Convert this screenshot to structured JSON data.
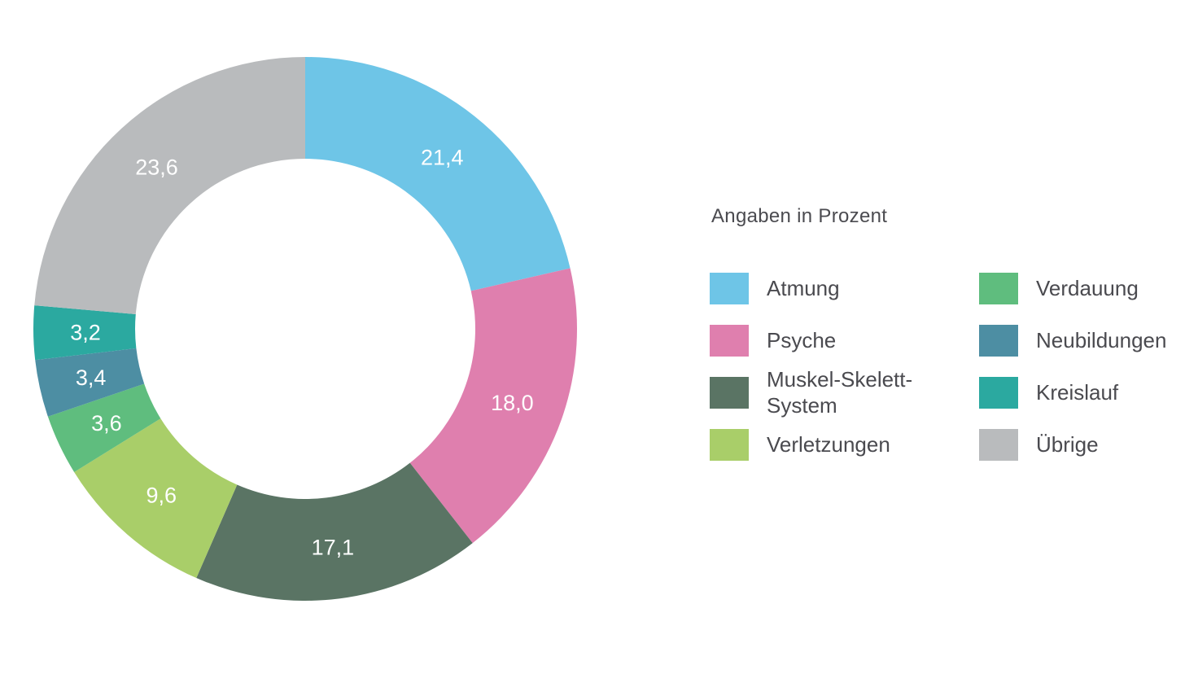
{
  "chart_data": {
    "type": "pie",
    "subtype": "donut",
    "title": "",
    "legend_title": "Angaben in Prozent",
    "unit": "percent",
    "start_angle": "top",
    "direction": "clockwise",
    "legend_position": "right",
    "series": [
      {
        "label": "Atmung",
        "value": 21.4,
        "value_label": "21,4",
        "color": "#6ec5e7"
      },
      {
        "label": "Psyche",
        "value": 18.0,
        "value_label": "18,0",
        "color": "#df7fae"
      },
      {
        "label": "Muskel-Skelett-System",
        "value": 17.1,
        "value_label": "17,1",
        "color": "#5a7464"
      },
      {
        "label": "Verletzungen",
        "value": 9.6,
        "value_label": "9,6",
        "color": "#a9ce69"
      },
      {
        "label": "Verdauung",
        "value": 3.6,
        "value_label": "3,6",
        "color": "#5fbd7e"
      },
      {
        "label": "Neubildungen",
        "value": 3.4,
        "value_label": "3,4",
        "color": "#4d8ea3"
      },
      {
        "label": "Kreislauf",
        "value": 3.2,
        "value_label": "3,2",
        "color": "#2ba9a0"
      },
      {
        "label": "Übrige",
        "value": 23.6,
        "value_label": "23,6",
        "color": "#b9bbbd"
      }
    ],
    "legend_columns": [
      [
        "Atmung",
        "Psyche",
        "Muskel-Skelett-System",
        "Verletzungen"
      ],
      [
        "Verdauung",
        "Neubildungen",
        "Kreislauf",
        "Übrige"
      ]
    ]
  }
}
